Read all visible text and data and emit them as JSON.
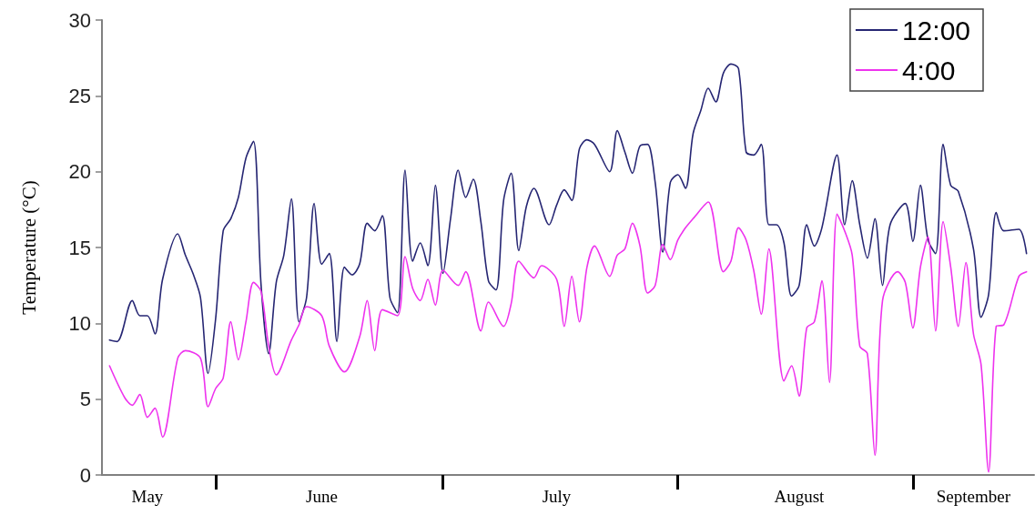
{
  "chart_data": {
    "type": "line",
    "ylabel": "Temperature (°C)",
    "ylim": [
      0,
      30
    ],
    "yticks": [
      0,
      5,
      10,
      15,
      20,
      25,
      30
    ],
    "xlim": [
      "--05-17",
      "--09-17"
    ],
    "xticks": [
      {
        "value": "--05-23",
        "label": "May"
      },
      {
        "value": "--06-01",
        "label": null
      },
      {
        "value": "--06-15",
        "label": "June"
      },
      {
        "value": "--07-01",
        "label": null
      },
      {
        "value": "--07-16",
        "label": "July"
      },
      {
        "value": "--08-01",
        "label": null
      },
      {
        "value": "--08-17",
        "label": "August"
      },
      {
        "value": "--09-01",
        "label": null
      },
      {
        "value": "--09-09",
        "label": "September"
      }
    ],
    "grid": false,
    "legend": "top right",
    "marker": "none",
    "line_style": "solid",
    "series": [
      {
        "name": "12:00",
        "color": "#262673",
        "x": [
          "--05-18",
          "--05-19",
          "--05-21",
          "--05-22",
          "--05-23",
          "--05-24",
          "--05-25",
          "--05-27",
          "--05-28",
          "--05-29",
          "--05-30",
          "--05-31",
          "--06-01",
          "--06-02",
          "--06-03",
          "--06-04",
          "--06-05",
          "--06-06",
          "--06-07",
          "--06-08",
          "--06-09",
          "--06-10",
          "--06-11",
          "--06-12",
          "--06-13",
          "--06-14",
          "--06-15",
          "--06-16",
          "--06-17",
          "--06-18",
          "--06-19",
          "--06-20",
          "--06-21",
          "--06-22",
          "--06-23",
          "--06-24",
          "--06-25",
          "--06-26",
          "--06-27",
          "--06-28",
          "--06-29",
          "--06-30",
          "--07-01",
          "--07-02",
          "--07-03",
          "--07-04",
          "--07-05",
          "--07-06",
          "--07-07",
          "--07-08",
          "--07-09",
          "--07-10",
          "--07-11",
          "--07-12",
          "--07-13",
          "--07-15",
          "--07-16",
          "--07-17",
          "--07-18",
          "--07-19",
          "--07-20",
          "--07-21",
          "--07-23",
          "--07-24",
          "--07-25",
          "--07-26",
          "--07-27",
          "--07-28",
          "--07-29",
          "--07-30",
          "--07-31",
          "--08-01",
          "--08-02",
          "--08-03",
          "--08-04",
          "--08-05",
          "--08-06",
          "--08-07",
          "--08-08",
          "--08-09",
          "--08-10",
          "--08-11",
          "--08-12",
          "--08-13",
          "--08-14",
          "--08-15",
          "--08-16",
          "--08-17",
          "--08-18",
          "--08-19",
          "--08-20",
          "--08-22",
          "--08-23",
          "--08-24",
          "--08-25",
          "--08-26",
          "--08-27",
          "--08-28",
          "--08-29",
          "--08-31",
          "--09-01",
          "--09-02",
          "--09-03",
          "--09-04",
          "--09-05",
          "--09-06",
          "--09-07",
          "--09-09",
          "--09-10",
          "--09-11",
          "--09-12",
          "--09-13",
          "--09-15",
          "--09-16"
        ],
        "values": [
          8.9,
          8.8,
          11.5,
          10.5,
          10.5,
          9.3,
          12.9,
          15.9,
          14.5,
          13.3,
          11.7,
          6.7,
          10.3,
          16.1,
          16.9,
          18.3,
          20.9,
          22.0,
          12.5,
          8.0,
          12.7,
          14.5,
          18.2,
          10.1,
          11.7,
          17.9,
          13.9,
          14.6,
          8.8,
          13.7,
          13.2,
          13.9,
          16.6,
          16.1,
          17.1,
          11.7,
          10.7,
          20.1,
          14.1,
          15.3,
          13.8,
          19.1,
          13.3,
          16.9,
          20.1,
          18.3,
          19.5,
          16.7,
          12.8,
          12.2,
          18.1,
          19.9,
          14.8,
          17.7,
          18.9,
          16.5,
          17.8,
          18.8,
          18.1,
          21.5,
          22.1,
          21.8,
          20.0,
          22.7,
          21.3,
          19.9,
          21.7,
          21.8,
          19.3,
          14.7,
          19.3,
          19.8,
          18.9,
          22.5,
          24.0,
          25.5,
          24.6,
          26.5,
          27.1,
          26.8,
          21.3,
          21.1,
          21.8,
          16.5,
          16.5,
          15.3,
          11.8,
          12.5,
          16.5,
          15.1,
          16.3,
          21.1,
          16.5,
          19.4,
          16.5,
          14.3,
          16.9,
          12.5,
          16.5,
          17.9,
          15.4,
          19.1,
          15.5,
          14.6,
          21.8,
          19.1,
          18.7,
          14.9,
          10.4,
          11.9,
          17.3,
          16.1,
          16.2,
          14.6
        ]
      },
      {
        "name": "4:00",
        "color": "#ee33ee",
        "x": [
          "--05-18",
          "--05-20",
          "--05-21",
          "--05-22",
          "--05-23",
          "--05-24",
          "--05-25",
          "--05-27",
          "--05-28",
          "--05-30",
          "--05-31",
          "--06-01",
          "--06-02",
          "--06-03",
          "--06-04",
          "--06-05",
          "--06-06",
          "--06-07",
          "--06-08",
          "--06-09",
          "--06-11",
          "--06-12",
          "--06-13",
          "--06-15",
          "--06-16",
          "--06-18",
          "--06-20",
          "--06-21",
          "--06-22",
          "--06-23",
          "--06-25",
          "--06-26",
          "--06-27",
          "--06-28",
          "--06-29",
          "--06-30",
          "--07-01",
          "--07-03",
          "--07-04",
          "--07-06",
          "--07-07",
          "--07-09",
          "--07-10",
          "--07-11",
          "--07-13",
          "--07-14",
          "--07-16",
          "--07-17",
          "--07-18",
          "--07-19",
          "--07-20",
          "--07-21",
          "--07-23",
          "--07-24",
          "--07-25",
          "--07-26",
          "--07-27",
          "--07-28",
          "--07-29",
          "--07-30",
          "--07-31",
          "--08-01",
          "--08-02",
          "--08-03",
          "--08-05",
          "--08-07",
          "--08-08",
          "--08-09",
          "--08-10",
          "--08-11",
          "--08-12",
          "--08-13",
          "--08-15",
          "--08-16",
          "--08-17",
          "--08-18",
          "--08-19",
          "--08-20",
          "--08-21",
          "--08-22",
          "--08-23",
          "--08-24",
          "--08-25",
          "--08-26",
          "--08-27",
          "--08-28",
          "--08-30",
          "--08-31",
          "--09-01",
          "--09-02",
          "--09-03",
          "--09-04",
          "--09-05",
          "--09-06",
          "--09-07",
          "--09-08",
          "--09-09",
          "--09-10",
          "--09-11",
          "--09-12",
          "--09-13",
          "--09-15",
          "--09-16"
        ],
        "values": [
          7.2,
          5.1,
          4.6,
          5.3,
          3.8,
          4.4,
          2.5,
          7.7,
          8.2,
          7.7,
          4.5,
          5.7,
          6.4,
          10.1,
          7.6,
          10.1,
          12.7,
          12.1,
          8.5,
          6.6,
          8.9,
          9.9,
          11.1,
          10.5,
          8.5,
          6.8,
          9.1,
          11.5,
          8.2,
          10.9,
          10.5,
          14.4,
          12.3,
          11.5,
          12.9,
          11.2,
          13.5,
          12.5,
          13.4,
          9.5,
          11.4,
          9.8,
          11.3,
          14.1,
          13.0,
          13.8,
          12.9,
          9.8,
          13.1,
          10.1,
          13.7,
          15.1,
          13.1,
          14.5,
          14.9,
          16.6,
          15.1,
          12.0,
          12.5,
          15.2,
          14.2,
          15.5,
          16.3,
          16.9,
          18.0,
          13.4,
          14.1,
          16.3,
          15.5,
          13.5,
          10.6,
          14.9,
          6.2,
          7.2,
          5.2,
          9.7,
          10.1,
          12.8,
          6.1,
          17.2,
          16.1,
          14.5,
          8.5,
          8.0,
          1.3,
          11.5,
          13.4,
          12.7,
          9.7,
          13.7,
          15.7,
          9.5,
          16.7,
          13.7,
          9.8,
          14.0,
          9.3,
          7.3,
          0.2,
          9.8,
          9.9,
          13.1,
          13.4
        ]
      }
    ]
  }
}
